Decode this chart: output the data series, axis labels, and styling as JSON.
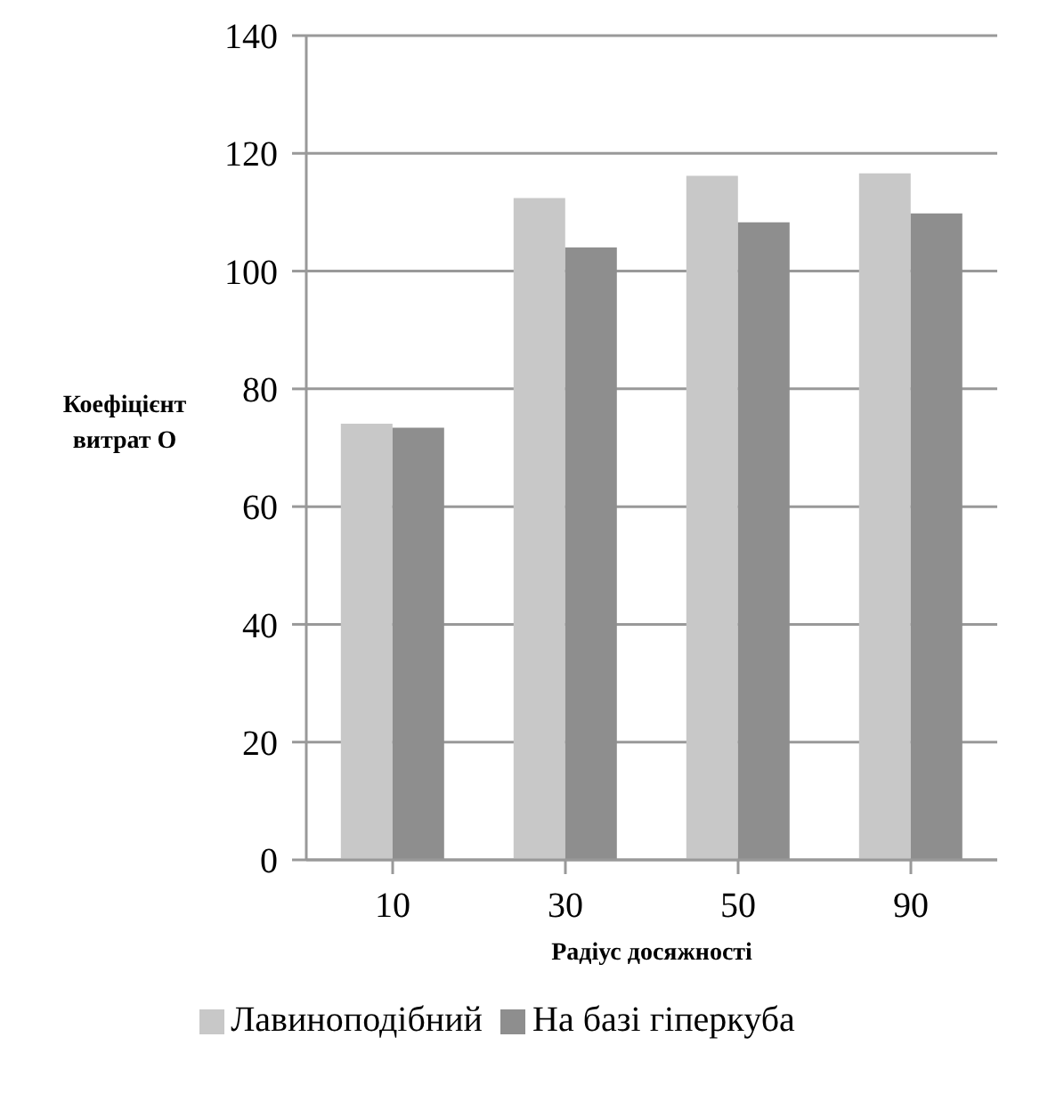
{
  "chart_data": {
    "type": "bar",
    "xlabel": "Радіус досяжності",
    "ylabel": "Коефіцієнт витрат O",
    "categories": [
      "10",
      "30",
      "50",
      "90"
    ],
    "series": [
      {
        "name": "Лавиноподібний",
        "color": "#c8c8c8",
        "values": [
          74.1,
          112.4,
          116.2,
          116.6
        ]
      },
      {
        "name": "На базі гіперкуба",
        "color": "#8e8e8e",
        "values": [
          73.4,
          104.0,
          108.3,
          109.8
        ]
      }
    ],
    "ylim": [
      0,
      140
    ],
    "yticks": [
      0,
      20,
      40,
      60,
      80,
      100,
      120,
      140
    ],
    "grid": "y",
    "legend": "bottom"
  }
}
